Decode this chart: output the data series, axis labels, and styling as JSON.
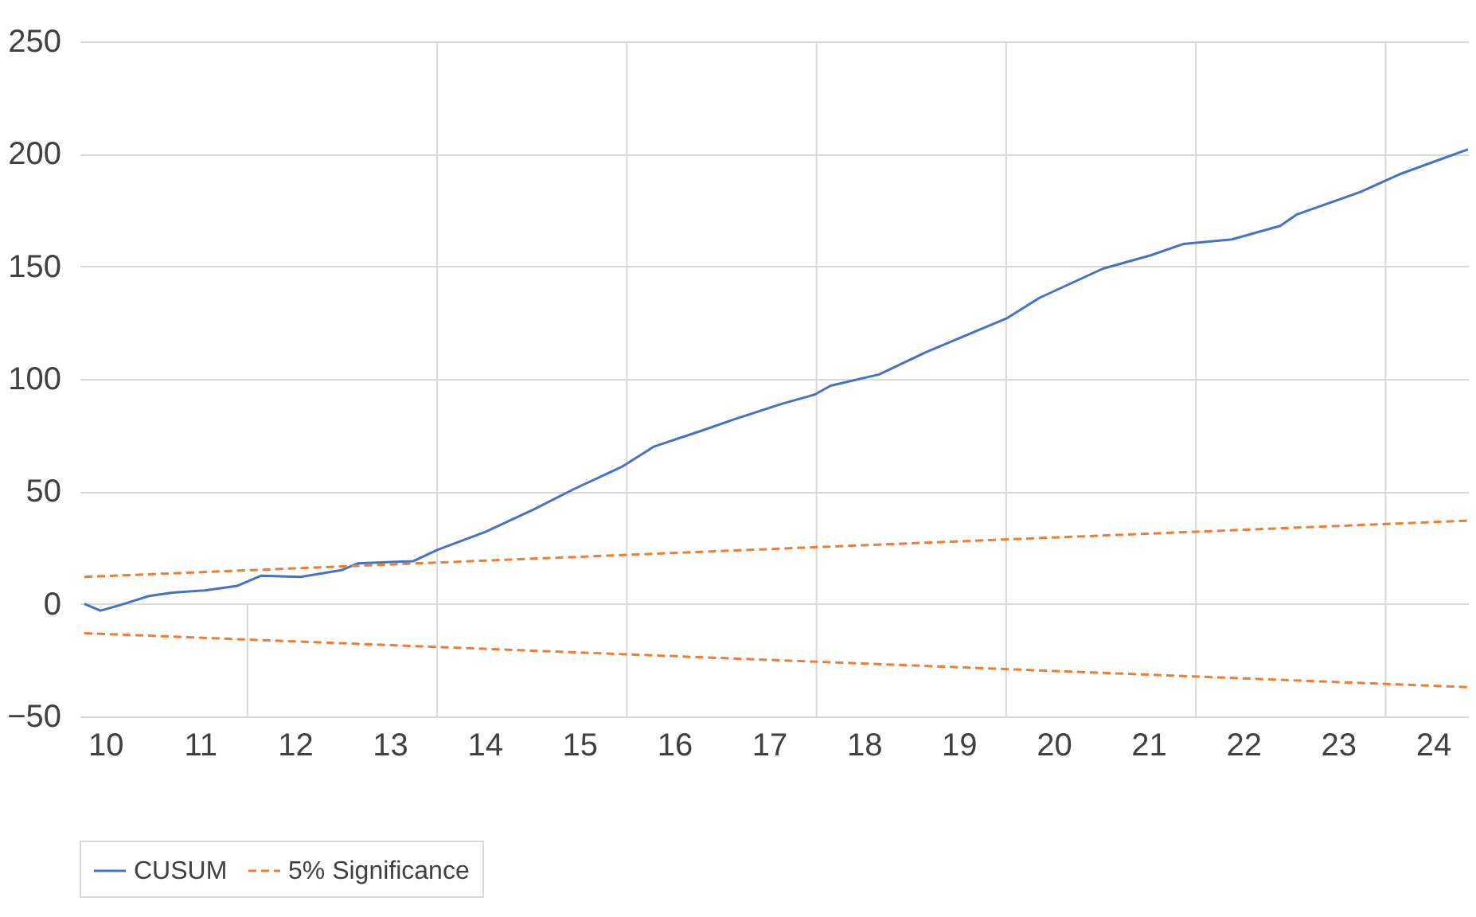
{
  "chart_data": {
    "type": "line",
    "xlim": [
      9.73,
      24.37
    ],
    "xticks": [
      10,
      11,
      12,
      13,
      14,
      15,
      16,
      17,
      18,
      19,
      20,
      21,
      22,
      23,
      24
    ],
    "ylim": [
      -50,
      250
    ],
    "yticks": [
      -50,
      0,
      50,
      100,
      150,
      200,
      250
    ],
    "grid": "y",
    "legend": "bottom",
    "line_style": "solid",
    "series": [
      {
        "name": "CUSUM",
        "color": "#4472c4",
        "x": [
          9.78,
          9.95,
          10.2,
          10.46,
          10.71,
          11.05,
          11.39,
          11.64,
          12.06,
          12.49,
          12.66,
          13.25,
          13.5,
          14.01,
          14.52,
          14.94,
          15.45,
          15.79,
          16.29,
          16.63,
          17.14,
          17.48,
          17.65,
          18.16,
          18.66,
          19.17,
          19.51,
          19.85,
          20.52,
          21.03,
          21.37,
          21.88,
          22.39,
          22.56,
          23.23,
          23.65,
          23.91,
          24.37
        ],
        "values": [
          0,
          -3,
          0,
          3.5,
          5,
          6,
          8,
          12.5,
          12,
          15,
          18,
          19,
          24,
          32,
          42,
          51,
          61,
          70,
          77,
          82,
          89,
          93,
          97,
          102,
          112,
          121,
          127,
          136,
          149,
          155,
          160,
          162,
          168,
          173,
          183,
          191,
          195,
          202
        ]
      },
      {
        "name": "5% Significance",
        "color": "#ed7d31",
        "line_style": "dashed",
        "x": [
          9.78,
          24.37
        ],
        "values": [
          12,
          37
        ]
      },
      {
        "color": "#ed7d31",
        "line_style": "dashed",
        "x": [
          9.78,
          24.37
        ],
        "values": [
          -13,
          -37
        ]
      }
    ],
    "ref_lines": [
      {
        "axis": "x",
        "value": 11.5,
        "color": "#d9d9d9"
      },
      {
        "axis": "x",
        "value": 13.5,
        "color": "#d9d9d9"
      },
      {
        "axis": "x",
        "value": 15.5,
        "color": "#d9d9d9"
      },
      {
        "axis": "x",
        "value": 17.5,
        "color": "#d9d9d9"
      },
      {
        "axis": "x",
        "value": 19.5,
        "color": "#d9d9d9"
      },
      {
        "axis": "x",
        "value": 21.5,
        "color": "#d9d9d9"
      },
      {
        "axis": "x",
        "value": 23.5,
        "color": "#d9d9d9"
      }
    ]
  }
}
